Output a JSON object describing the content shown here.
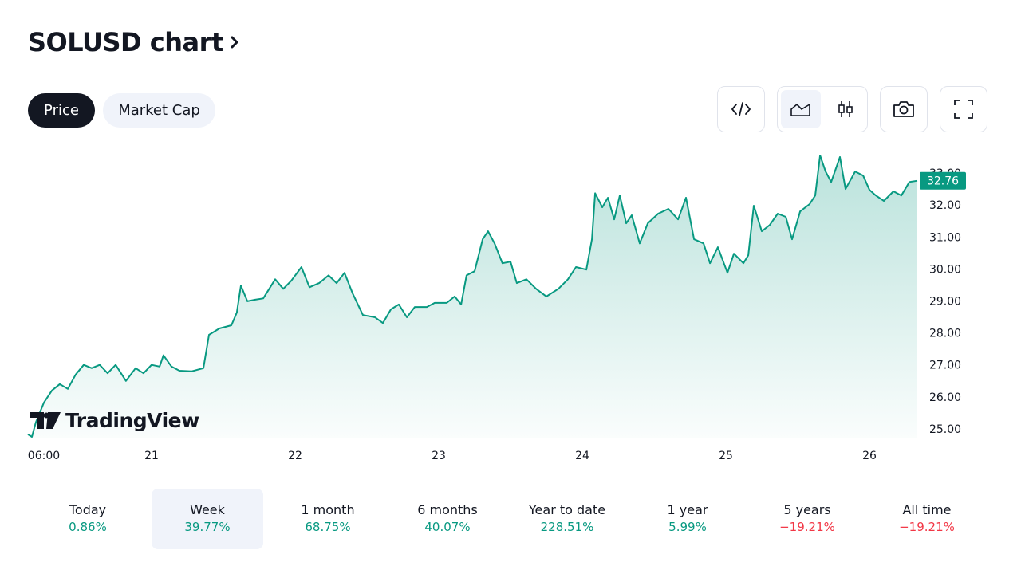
{
  "header": {
    "title": "SOLUSD chart"
  },
  "tabs": [
    "Price",
    "Market Cap"
  ],
  "chart_data": {
    "type": "line",
    "watermark": "TradingView",
    "x": [
      20.139,
      20.167,
      20.194,
      20.25,
      20.306,
      20.361,
      20.417,
      20.472,
      20.528,
      20.583,
      20.639,
      20.694,
      20.75,
      20.822,
      20.889,
      20.944,
      21,
      21.056,
      21.083,
      21.139,
      21.194,
      21.278,
      21.361,
      21.4,
      21.472,
      21.556,
      21.594,
      21.622,
      21.667,
      21.722,
      21.778,
      21.861,
      21.917,
      21.972,
      22.044,
      22.1,
      22.167,
      22.233,
      22.289,
      22.344,
      22.4,
      22.472,
      22.556,
      22.611,
      22.667,
      22.722,
      22.778,
      22.833,
      22.917,
      22.972,
      23.056,
      23.111,
      23.156,
      23.194,
      23.25,
      23.306,
      23.344,
      23.389,
      23.444,
      23.5,
      23.544,
      23.611,
      23.678,
      23.75,
      23.833,
      23.9,
      23.956,
      24.028,
      24.067,
      24.089,
      24.139,
      24.178,
      24.222,
      24.261,
      24.306,
      24.344,
      24.4,
      24.456,
      24.528,
      24.6,
      24.667,
      24.722,
      24.778,
      24.844,
      24.889,
      24.944,
      25.011,
      25.056,
      25.122,
      25.156,
      25.194,
      25.25,
      25.306,
      25.361,
      25.417,
      25.461,
      25.517,
      25.583,
      25.622,
      25.656,
      25.694,
      25.733,
      25.794,
      25.833,
      25.9,
      25.956,
      26,
      26.044,
      26.1,
      26.167,
      26.222,
      26.278,
      26.333
    ],
    "series": [
      {
        "name": "SOLUSD",
        "color": "#089981",
        "values": [
          24.83,
          24.75,
          25.2,
          25.82,
          26.2,
          26.4,
          26.25,
          26.7,
          27.0,
          26.9,
          27.0,
          26.74,
          27.0,
          26.5,
          26.9,
          26.74,
          27.0,
          26.95,
          27.3,
          26.95,
          26.82,
          26.8,
          26.9,
          27.94,
          28.14,
          28.24,
          28.64,
          29.48,
          28.99,
          29.04,
          29.08,
          29.68,
          29.38,
          29.63,
          30.06,
          29.43,
          29.56,
          29.8,
          29.56,
          29.88,
          29.24,
          28.56,
          28.49,
          28.31,
          28.74,
          28.89,
          28.49,
          28.81,
          28.81,
          28.94,
          28.94,
          29.14,
          28.89,
          29.8,
          29.93,
          30.93,
          31.18,
          30.8,
          30.18,
          30.23,
          29.56,
          29.68,
          29.38,
          29.14,
          29.38,
          29.68,
          30.06,
          29.98,
          30.93,
          32.37,
          31.93,
          32.23,
          31.55,
          32.3,
          31.43,
          31.68,
          30.8,
          31.43,
          31.73,
          31.88,
          31.55,
          32.23,
          30.93,
          30.8,
          30.18,
          30.68,
          29.88,
          30.48,
          30.18,
          30.43,
          31.98,
          31.18,
          31.38,
          31.73,
          31.63,
          30.93,
          31.8,
          32.03,
          32.3,
          33.55,
          33.05,
          32.72,
          33.5,
          32.5,
          33.05,
          32.92,
          32.47,
          32.3,
          32.13,
          32.43,
          32.3,
          32.72,
          32.76
        ]
      }
    ],
    "xlim": [
      20.139,
      26.333
    ],
    "xticks": [
      {
        "value": 20.25,
        "label": "06:00"
      },
      21,
      22,
      23,
      24,
      25,
      26
    ],
    "ylim": [
      24.7,
      33.8
    ],
    "yticks": [
      {
        "value": 25,
        "label": "25.00"
      },
      {
        "value": 26,
        "label": "26.00"
      },
      {
        "value": 27,
        "label": "27.00"
      },
      {
        "value": 28,
        "label": "28.00"
      },
      {
        "value": 29,
        "label": "29.00"
      },
      {
        "value": 30,
        "label": "30.00"
      },
      {
        "value": 31,
        "label": "31.00"
      },
      {
        "value": 32,
        "label": "32.00"
      },
      {
        "value": 33,
        "label": "33.00"
      }
    ],
    "grid": false
  },
  "periods": [
    {
      "label": "Today",
      "change": "0.86%",
      "direction": "up"
    },
    {
      "label": "Week",
      "change": "39.77%",
      "direction": "up",
      "selected": true
    },
    {
      "label": "1 month",
      "change": "68.75%",
      "direction": "up"
    },
    {
      "label": "6 months",
      "change": "40.07%",
      "direction": "up"
    },
    {
      "label": "Year to date",
      "change": "228.51%",
      "direction": "up"
    },
    {
      "label": "1 year",
      "change": "5.99%",
      "direction": "up"
    },
    {
      "label": "5 years",
      "change": "−19.21%",
      "direction": "down"
    },
    {
      "label": "All time",
      "change": "−19.21%",
      "direction": "down"
    }
  ]
}
